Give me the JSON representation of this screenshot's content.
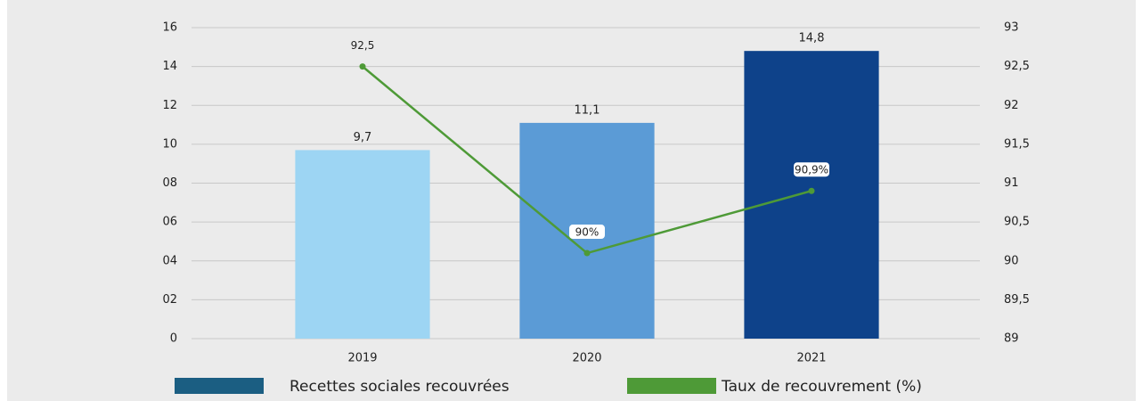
{
  "chart_data": {
    "type": "bar-line",
    "categories": [
      "2019",
      "2020",
      "2021"
    ],
    "series": [
      {
        "name": "Recettes sociales recouvrées",
        "type": "bar",
        "color": "#1b5e82",
        "colors": [
          "#9dd5f3",
          "#5b9bd6",
          "#0e428a"
        ],
        "values": [
          9.7,
          11.1,
          14.8
        ],
        "value_labels": [
          "9,7",
          "11,1",
          "14,8"
        ]
      },
      {
        "name": "Taux de recouvrement (%)",
        "type": "line",
        "axis": "y2",
        "color": "#4e9a37",
        "values": [
          92.5,
          90.1,
          90.9
        ],
        "value_labels": [
          "92,5",
          "90%",
          "90,9%"
        ]
      }
    ],
    "ylim": [
      0,
      16
    ],
    "yticks": [
      0,
      {
        "value": 2,
        "label": "02"
      },
      {
        "value": 4,
        "label": "04"
      },
      {
        "value": 6,
        "label": "06"
      },
      {
        "value": 8,
        "label": "08"
      },
      10,
      12,
      14,
      16
    ],
    "y2lim": [
      89,
      93
    ],
    "y2ticks": [
      89,
      {
        "value": 89.5,
        "label": "89,5"
      },
      90,
      {
        "value": 90.5,
        "label": "90,5"
      },
      91,
      {
        "value": 91.5,
        "label": "91,5"
      },
      92,
      {
        "value": 92.5,
        "label": "92,5"
      },
      93
    ],
    "grid": true
  }
}
